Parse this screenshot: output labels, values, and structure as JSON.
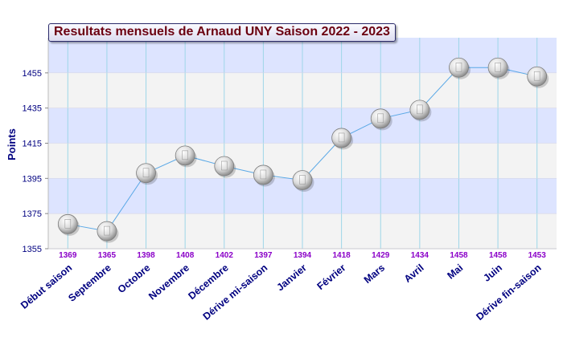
{
  "chart_data": {
    "type": "line",
    "title": "Resultats mensuels de Arnaud UNY Saison 2022 - 2023",
    "ylabel": "Points",
    "xlabel": "",
    "ylim": [
      1355,
      1475
    ],
    "yticks": [
      1355,
      1375,
      1395,
      1415,
      1435,
      1455
    ],
    "categories": [
      "Début saison",
      "Septembre",
      "Octobre",
      "Novembre",
      "Décembre",
      "Dérive mi-saison",
      "Janvier",
      "Février",
      "Mars",
      "Avril",
      "Mai",
      "Juin",
      "Dérive fin-saison"
    ],
    "values": [
      1369,
      1365,
      1398,
      1408,
      1402,
      1397,
      1394,
      1418,
      1429,
      1434,
      1458,
      1458,
      1453
    ],
    "grid": true,
    "legend": "none",
    "colors": {
      "title_text": "#6b0010",
      "line": "#5aa8e6",
      "band_blue": "#dde4ff",
      "band_gray": "#f3f3f3",
      "vertical_grid": "#9ed6e8",
      "value_labels": "#8a00c8",
      "category_labels": "#000080",
      "axis_labels": "#000080"
    }
  }
}
